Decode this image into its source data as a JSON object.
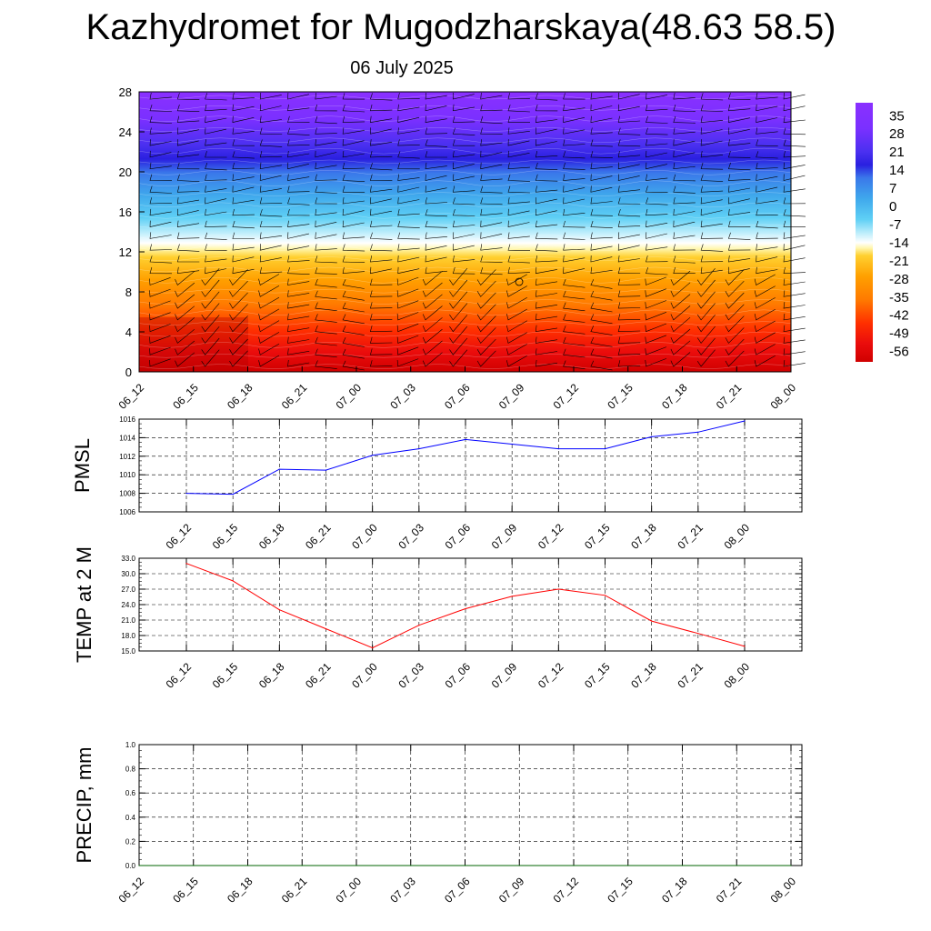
{
  "title": "Kazhydromet for Mugodzharskaya(48.63 58.5)",
  "subtitle": "06 July 2025",
  "chart_data": [
    {
      "type": "heatmap",
      "name": "vertical-cross-section",
      "x_ticks": [
        "06_12",
        "06_15",
        "06_18",
        "06_21",
        "07_00",
        "07_03",
        "07_06",
        "07_09",
        "07_12",
        "07_15",
        "07_18",
        "07_21",
        "08_00"
      ],
      "y_ticks": [
        "0",
        "4",
        "8",
        "12",
        "16",
        "20",
        "24",
        "28"
      ],
      "ylim": [
        0,
        28
      ],
      "colorbar_labels": [
        "35",
        "28",
        "21",
        "14",
        "7",
        "0",
        "-7",
        "-14",
        "-21",
        "-28",
        "-35",
        "-42",
        "-49",
        "-56"
      ],
      "colorbar_range": [
        -60,
        40
      ],
      "colors": {
        "warm_bottom": "#cc0000",
        "red": "#ee1010",
        "orange": "#ff9000",
        "yellow": "#ffee30",
        "white": "#ffffff",
        "light_blue": "#5fd0f5",
        "blue": "#2f8fe8",
        "royal_blue": "#3050e8",
        "dark_blue": "#2a20e0",
        "violet": "#8a30ff"
      },
      "grid": false
    },
    {
      "type": "line",
      "name": "pmsl",
      "ylabel": "PMSL",
      "categories": [
        "06_12",
        "06_15",
        "06_18",
        "06_21",
        "07_00",
        "07_03",
        "07_06",
        "07_09",
        "07_12",
        "07_15",
        "07_18",
        "07_21",
        "08_00"
      ],
      "values": [
        1008.0,
        1007.9,
        1010.6,
        1010.5,
        1012.1,
        1012.8,
        1013.8,
        1013.3,
        1012.8,
        1012.8,
        1014.1,
        1014.6,
        1015.8
      ],
      "ylim": [
        1006,
        1016
      ],
      "y_ticks": [
        "1006",
        "1008",
        "1010",
        "1012",
        "1014",
        "1016"
      ],
      "color": "#0000ff",
      "grid": true
    },
    {
      "type": "line",
      "name": "temp2m",
      "ylabel": "TEMP at 2 M",
      "categories": [
        "06_12",
        "06_15",
        "06_18",
        "06_21",
        "07_00",
        "07_03",
        "07_06",
        "07_09",
        "07_12",
        "07_15",
        "07_18",
        "07_21",
        "08_00"
      ],
      "values": [
        32.0,
        28.6,
        23.0,
        19.3,
        15.6,
        20.0,
        23.2,
        25.6,
        27.0,
        25.8,
        20.8,
        18.4,
        15.9
      ],
      "ylim": [
        15,
        33
      ],
      "y_ticks": [
        "15.0",
        "18.0",
        "21.0",
        "24.0",
        "27.0",
        "30.0",
        "33.0"
      ],
      "color": "#ff0000",
      "grid": true
    },
    {
      "type": "line",
      "name": "precip",
      "ylabel": "PRECIP, mm",
      "categories": [
        "06_12",
        "06_15",
        "06_18",
        "06_21",
        "07_00",
        "07_03",
        "07_06",
        "07_09",
        "07_12",
        "07_15",
        "07_18",
        "07_21",
        "08_00"
      ],
      "values": [
        0,
        0,
        0,
        0,
        0,
        0,
        0,
        0,
        0,
        0,
        0,
        0,
        0
      ],
      "ylim": [
        0,
        1
      ],
      "y_ticks": [
        "0.0",
        "0.2",
        "0.4",
        "0.6",
        "0.8",
        "1.0"
      ],
      "color": "#006400",
      "grid": true
    }
  ]
}
